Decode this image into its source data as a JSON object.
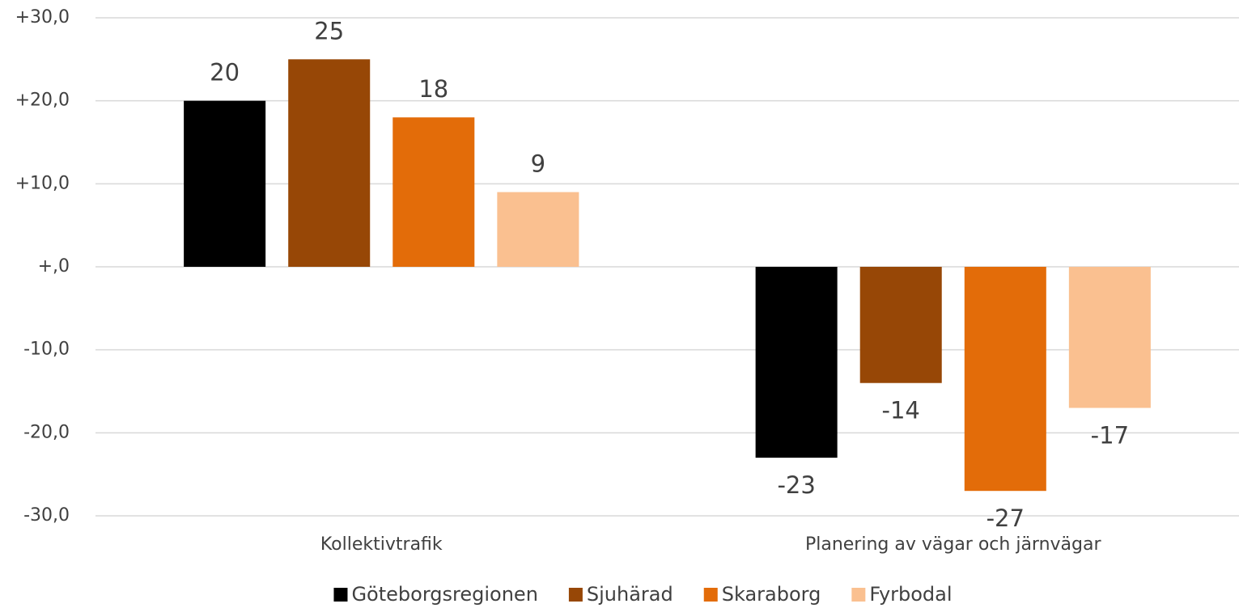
{
  "chart_data": {
    "type": "bar",
    "categories": [
      "Kollektivtrafik",
      "Planering av vägar och järnvägar"
    ],
    "series": [
      {
        "name": "Göteborgsregionen",
        "color": "#000000",
        "values": [
          20,
          -23
        ]
      },
      {
        "name": "Sjuhärad",
        "color": "#974706",
        "values": [
          25,
          -14
        ]
      },
      {
        "name": "Skaraborg",
        "color": "#e36c09",
        "values": [
          18,
          -27
        ]
      },
      {
        "name": "Fyrbodal",
        "color": "#fac090",
        "values": [
          9,
          -17
        ]
      }
    ],
    "ylim": [
      -30,
      30
    ],
    "yticks": [
      {
        "value": -30,
        "label": "-30,0"
      },
      {
        "value": -20,
        "label": "-20,0"
      },
      {
        "value": -10,
        "label": "-10,0"
      },
      {
        "value": 0,
        "label": "+,0"
      },
      {
        "value": 10,
        "label": "+10,0"
      },
      {
        "value": 20,
        "label": "+20,0"
      },
      {
        "value": 30,
        "label": "+30,0"
      }
    ],
    "grid": true,
    "legend": "bottom"
  }
}
